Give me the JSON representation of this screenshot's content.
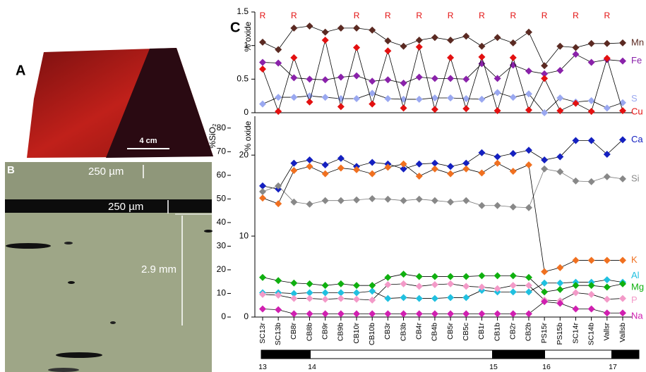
{
  "panels": {
    "a": {
      "label": "A",
      "scale": "4 cm"
    },
    "b": {
      "label": "B",
      "top_band": "250 µm",
      "black_band": "250 µm",
      "depth": "2.9 mm"
    },
    "c": {
      "label": "C"
    }
  },
  "chart_data": [
    {
      "type": "line",
      "ylabel": "% oxide",
      "ylim": [
        0,
        1.5
      ],
      "yticks": [
        0,
        0.5,
        1,
        1.5
      ],
      "annotations": [
        "R",
        null,
        "R",
        null,
        null,
        null,
        "R",
        null,
        "R",
        null,
        "R",
        null,
        "R",
        null,
        "R",
        null,
        "R",
        null,
        "R",
        null,
        "R",
        null,
        "R",
        null
      ],
      "annotation_color": "#e31010",
      "series": [
        {
          "name": "Mn",
          "color": "#5b2a22",
          "values": [
            1.05,
            0.94,
            1.26,
            1.29,
            1.2,
            1.26,
            1.26,
            1.23,
            1.07,
            0.99,
            1.08,
            1.12,
            1.08,
            1.14,
            0.99,
            1.12,
            1.04,
            1.2,
            0.7,
            0.99,
            0.97,
            1.03,
            1.03,
            1.04
          ]
        },
        {
          "name": "Fe",
          "color": "#8a22aa",
          "values": [
            0.75,
            0.74,
            0.52,
            0.5,
            0.49,
            0.53,
            0.55,
            0.47,
            0.49,
            0.44,
            0.53,
            0.51,
            0.51,
            0.5,
            0.73,
            0.51,
            0.71,
            0.62,
            0.58,
            0.63,
            0.87,
            0.75,
            0.79,
            0.77
          ]
        },
        {
          "name": "S",
          "color": "#9aa8f0",
          "values": [
            0.13,
            0.23,
            0.23,
            0.25,
            0.23,
            0.21,
            0.21,
            0.29,
            0.21,
            0.2,
            0.2,
            0.22,
            0.22,
            0.21,
            0.2,
            0.3,
            0.23,
            0.28,
            0,
            0.22,
            0.16,
            0.18,
            0.07,
            0.15
          ]
        },
        {
          "name": "Cu",
          "color": "#e31010",
          "values": [
            0.65,
            0.02,
            0.82,
            0.16,
            1.08,
            0.09,
            0.97,
            0.13,
            0.92,
            0.07,
            0.98,
            0.05,
            0.82,
            0.06,
            0.83,
            0.03,
            0.82,
            0.04,
            0.51,
            0.03,
            0.14,
            0.02,
            0.81,
            0.03
          ]
        }
      ]
    },
    {
      "type": "line",
      "ylabel": "%SiO₂",
      "y2label": "% oxide",
      "categories": [
        "SC13r",
        "SC13b",
        "CB8r",
        "CB8b",
        "CB9r",
        "CB9b",
        "CB10r",
        "CB10b",
        "CB3r",
        "CB3b",
        "CB4r",
        "CB4b",
        "CB5r",
        "CB5c",
        "CB1r",
        "CB1b",
        "CB2r",
        "CB2b",
        "PS15r",
        "PS15b",
        "SC14r",
        "SC14b",
        "Vallsr",
        "Vallsb"
      ],
      "ylim": [
        0,
        85
      ],
      "yticks": [
        0,
        10,
        20,
        30,
        40,
        50,
        60,
        70,
        80
      ],
      "y2lim": [
        0,
        24.8
      ],
      "y2ticks": [
        0,
        10,
        20
      ],
      "period_labels": [
        "13",
        "14",
        "15",
        "16",
        "17"
      ],
      "series": [
        {
          "name": "Ca",
          "color": "#1420c0",
          "axis": "y2",
          "values": [
            16.2,
            15.8,
            19.0,
            19.4,
            18.8,
            19.6,
            18.6,
            19.1,
            18.9,
            18.3,
            18.9,
            19.0,
            18.6,
            19.0,
            20.3,
            19.8,
            20.2,
            20.6,
            19.4,
            19.8,
            21.8,
            21.8,
            20.1,
            21.9
          ]
        },
        {
          "name": "Si",
          "color": "#888888",
          "values": [
            53.1,
            55.5,
            48.7,
            47.8,
            49.3,
            49.3,
            49.6,
            50.1,
            49.9,
            49.3,
            49.9,
            49.3,
            48.7,
            49.3,
            47.2,
            47.2,
            46.6,
            46.3,
            62.7,
            61.5,
            57.6,
            57.3,
            59.4,
            58.5
          ]
        },
        {
          "name": "K",
          "color": "#f07020",
          "axis": "y2",
          "values": [
            14.7,
            14.0,
            18.1,
            18.6,
            17.7,
            18.4,
            18.2,
            17.7,
            18.5,
            18.9,
            17.4,
            18.3,
            17.7,
            18.3,
            17.8,
            19.0,
            18.0,
            18.8,
            5.6,
            6.1,
            7.0,
            7.0,
            7.0,
            7.0
          ]
        },
        {
          "name": "Al",
          "color": "#20c0e0",
          "axis": "y2",
          "values": [
            3.0,
            3.0,
            2.9,
            3.0,
            3.0,
            3.0,
            3.0,
            3.2,
            2.3,
            2.4,
            2.3,
            2.3,
            2.4,
            2.4,
            3.3,
            3.1,
            3.1,
            3.1,
            4.2,
            4.2,
            4.3,
            4.3,
            4.6,
            4.3
          ]
        },
        {
          "name": "Mg",
          "color": "#10b010",
          "axis": "y2",
          "values": [
            4.9,
            4.5,
            4.2,
            4.1,
            3.9,
            4.1,
            3.9,
            3.9,
            4.9,
            5.3,
            5.0,
            5.0,
            5.0,
            5.0,
            5.1,
            5.1,
            5.1,
            4.9,
            3.1,
            3.4,
            3.9,
            3.9,
            3.7,
            4.1
          ]
        },
        {
          "name": "P",
          "color": "#f39ac8",
          "axis": "y2",
          "values": [
            2.8,
            2.7,
            2.3,
            2.3,
            2.2,
            2.3,
            2.2,
            2.1,
            4.0,
            4.1,
            3.8,
            4.0,
            4.1,
            3.8,
            3.7,
            3.5,
            3.9,
            3.9,
            2.1,
            2.0,
            3.0,
            2.8,
            2.2,
            2.3
          ]
        },
        {
          "name": "Na",
          "color": "#d020b0",
          "axis": "y2",
          "values": [
            1.0,
            0.9,
            0.4,
            0.4,
            0.4,
            0.4,
            0.4,
            0.4,
            0.4,
            0.4,
            0.4,
            0.4,
            0.4,
            0.4,
            0.4,
            0.4,
            0.4,
            0.4,
            1.9,
            1.7,
            1.0,
            1.0,
            0.5,
            0.5
          ]
        }
      ]
    }
  ]
}
